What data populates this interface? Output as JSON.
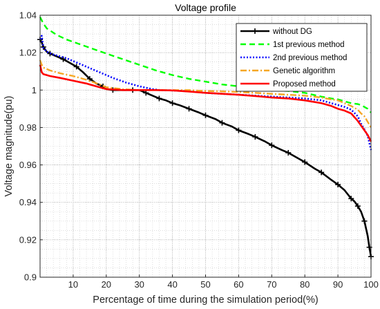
{
  "chart_data": {
    "type": "line",
    "title": "Voltage profile",
    "xlabel": "Percentage of time during the simulation period(%)",
    "ylabel": "Voltage magnitude(pu)",
    "xlim": [
      0,
      100
    ],
    "ylim": [
      0.9,
      1.04
    ],
    "xticks": [
      10,
      20,
      30,
      40,
      50,
      60,
      70,
      80,
      90,
      100
    ],
    "yticks": [
      0.9,
      0.92,
      0.94,
      0.96,
      0.98,
      1.0,
      1.02,
      1.04
    ],
    "ytick_labels": [
      "0.9",
      "0.92",
      "0.94",
      "0.96",
      "0.98",
      "1",
      "1.02",
      "1.04"
    ],
    "grid": true,
    "minor_grid": true,
    "legend_position": "top-right",
    "series": [
      {
        "name": "without DG",
        "color": "#000000",
        "style": "solid-plus",
        "x": [
          0,
          0.5,
          1,
          2,
          3,
          5,
          7,
          9,
          11,
          13,
          15,
          17,
          19,
          20,
          22,
          25,
          28,
          30,
          32,
          34,
          36,
          38,
          40,
          42,
          45,
          48,
          50,
          53,
          55,
          58,
          60,
          63,
          65,
          68,
          70,
          73,
          75,
          78,
          80,
          83,
          85,
          88,
          90,
          92,
          94,
          95,
          96,
          97,
          98,
          99,
          99.5,
          100
        ],
        "y": [
          1.027,
          1.0255,
          1.023,
          1.0205,
          1.0195,
          1.018,
          1.0165,
          1.0145,
          1.0125,
          1.0095,
          1.006,
          1.0035,
          1.002,
          1.0005,
          1.0,
          1.0,
          1.0,
          1.0,
          0.9985,
          0.997,
          0.9955,
          0.9945,
          0.993,
          0.992,
          0.99,
          0.988,
          0.9865,
          0.9845,
          0.9825,
          0.9805,
          0.9785,
          0.9765,
          0.975,
          0.9725,
          0.9705,
          0.968,
          0.9665,
          0.9635,
          0.9615,
          0.958,
          0.956,
          0.952,
          0.9495,
          0.9465,
          0.942,
          0.9405,
          0.938,
          0.935,
          0.93,
          0.922,
          0.916,
          0.911
        ]
      },
      {
        "name": "1st previous method",
        "color": "#00ff00",
        "style": "dashed",
        "x": [
          0,
          1,
          2,
          5,
          8,
          12,
          16,
          20,
          25,
          30,
          35,
          40,
          45,
          50,
          55,
          60,
          65,
          70,
          75,
          80,
          85,
          88,
          90,
          92,
          94,
          96,
          97,
          98,
          99,
          100
        ],
        "y": [
          1.039,
          1.0355,
          1.033,
          1.0295,
          1.027,
          1.0245,
          1.022,
          1.0195,
          1.0165,
          1.0135,
          1.0105,
          1.008,
          1.006,
          1.0045,
          1.003,
          1.002,
          1.001,
          1.0,
          0.9995,
          0.9985,
          0.9965,
          0.9955,
          0.995,
          0.994,
          0.993,
          0.9925,
          0.992,
          0.991,
          0.99,
          0.988
        ]
      },
      {
        "name": "2nd previous method",
        "color": "#0000ff",
        "style": "dotted",
        "x": [
          0,
          0.5,
          1,
          2,
          4,
          6,
          8,
          10,
          14,
          18,
          22,
          26,
          30,
          34,
          36,
          40,
          45,
          50,
          55,
          60,
          65,
          70,
          75,
          80,
          85,
          88,
          90,
          92,
          94,
          96,
          97,
          98,
          99,
          100
        ],
        "y": [
          1.027,
          1.029,
          1.0225,
          1.0205,
          1.019,
          1.018,
          1.017,
          1.0155,
          1.0125,
          1.0095,
          1.0065,
          1.004,
          1.002,
          1.0005,
          1.0,
          0.9998,
          0.9993,
          0.9985,
          0.998,
          0.9975,
          0.997,
          0.9965,
          0.996,
          0.9955,
          0.9945,
          0.993,
          0.992,
          0.991,
          0.9895,
          0.986,
          0.982,
          0.979,
          0.9755,
          0.968
        ]
      },
      {
        "name": "Genetic algorithm",
        "color": "#f5a623",
        "style": "dashdot",
        "x": [
          0,
          0.5,
          1,
          3,
          6,
          10,
          14,
          18,
          20,
          25,
          30,
          35,
          40,
          45,
          50,
          55,
          60,
          65,
          70,
          75,
          80,
          85,
          88,
          90,
          92,
          94,
          95,
          96,
          97,
          98,
          99,
          100
        ],
        "y": [
          1.016,
          1.0135,
          1.012,
          1.0105,
          1.009,
          1.0075,
          1.0055,
          1.003,
          1.0015,
          1.0005,
          1.0,
          1.0,
          1.0,
          1.0,
          0.9995,
          0.9993,
          0.999,
          0.9985,
          0.998,
          0.9975,
          0.997,
          0.996,
          0.995,
          0.9945,
          0.993,
          0.9915,
          0.9905,
          0.9895,
          0.9875,
          0.986,
          0.983,
          0.98
        ]
      },
      {
        "name": "Proposed method",
        "color": "#ff0000",
        "style": "solid",
        "x": [
          0,
          0.5,
          1,
          3,
          6,
          10,
          14,
          18,
          20,
          25,
          30,
          35,
          40,
          45,
          50,
          55,
          60,
          65,
          70,
          75,
          80,
          85,
          88,
          90,
          92,
          94,
          95,
          96,
          97,
          98,
          99,
          100
        ],
        "y": [
          1.0135,
          1.0095,
          1.0085,
          1.0075,
          1.0065,
          1.005,
          1.0035,
          1.0015,
          1.0005,
          1.0,
          1.0,
          1.0,
          0.9998,
          0.9992,
          0.9985,
          0.998,
          0.9975,
          0.9968,
          0.996,
          0.9955,
          0.9945,
          0.993,
          0.9915,
          0.99,
          0.989,
          0.9875,
          0.9855,
          0.9835,
          0.981,
          0.9785,
          0.976,
          0.9725
        ]
      }
    ]
  }
}
